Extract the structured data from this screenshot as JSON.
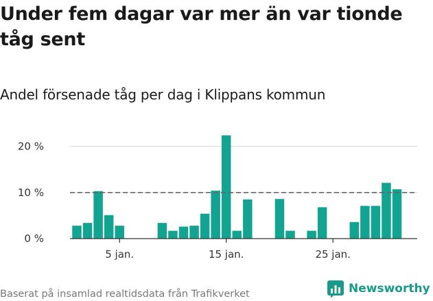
{
  "title": "Under fem dagar var mer än var tionde tåg sent",
  "subtitle": "Andel försenade tåg per dag i Klippans kommun",
  "footer": "Baserat på insamlad realtidsdata från Trafikverket",
  "logo_text": "Newsworthy",
  "colors": {
    "bar": "#13a391",
    "grid": "#dddddd",
    "axis": "#333333",
    "reference": "#666666",
    "brand": "#1a9a8b"
  },
  "chart_data": {
    "type": "bar",
    "x": [
      "2025-01-01",
      "2025-01-02",
      "2025-01-03",
      "2025-01-04",
      "2025-01-05",
      "2025-01-06",
      "2025-01-07",
      "2025-01-08",
      "2025-01-09",
      "2025-01-10",
      "2025-01-11",
      "2025-01-12",
      "2025-01-13",
      "2025-01-14",
      "2025-01-15",
      "2025-01-16",
      "2025-01-17",
      "2025-01-18",
      "2025-01-19",
      "2025-01-20",
      "2025-01-21",
      "2025-01-22",
      "2025-01-23",
      "2025-01-24",
      "2025-01-25",
      "2025-01-26",
      "2025-01-27",
      "2025-01-28",
      "2025-01-29",
      "2025-01-30",
      "2025-01-31"
    ],
    "values": [
      2.8,
      3.4,
      10.3,
      5.1,
      2.8,
      null,
      null,
      null,
      3.4,
      1.7,
      2.6,
      2.8,
      5.4,
      10.4,
      22.4,
      1.7,
      8.5,
      null,
      null,
      8.6,
      1.7,
      null,
      1.7,
      6.8,
      null,
      null,
      3.6,
      7.1,
      7.1,
      12.1,
      10.7
    ],
    "ylim": [
      0,
      23.5
    ],
    "yticks": [
      0,
      10,
      20
    ],
    "ytick_labels": [
      "0 %",
      "10 %",
      "20 %"
    ],
    "xtick_labels": [
      {
        "x": "2025-01-05",
        "label": "5 jan."
      },
      {
        "x": "2025-01-15",
        "label": "15 jan."
      },
      {
        "x": "2025-01-25",
        "label": "25 jan."
      }
    ],
    "reference_line": 10,
    "grid": true
  }
}
